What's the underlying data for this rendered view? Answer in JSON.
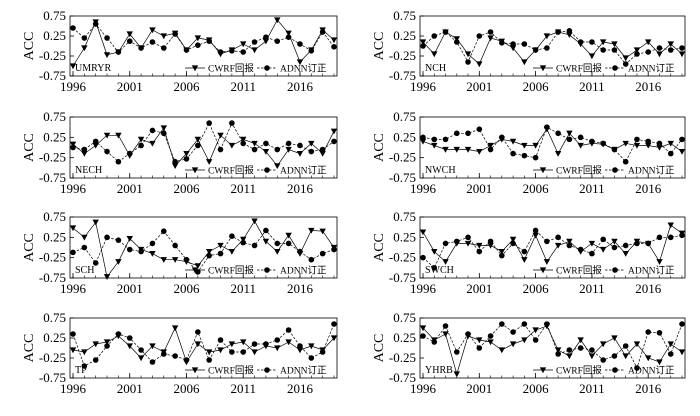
{
  "chart_data": [
    {
      "type": "line",
      "region": "UMRYR",
      "x": [
        1996,
        1997,
        1998,
        1999,
        2000,
        2001,
        2002,
        2003,
        2004,
        2005,
        2006,
        2007,
        2008,
        2009,
        2010,
        2011,
        2012,
        2013,
        2014,
        2015,
        2016,
        2017,
        2018,
        2019
      ],
      "series": [
        {
          "name": "CWRF回报",
          "values": [
            -0.5,
            -0.05,
            0.6,
            -0.22,
            -0.15,
            0.3,
            -0.05,
            0.4,
            0.25,
            0.32,
            -0.1,
            0.2,
            0.15,
            -0.2,
            -0.1,
            0.05,
            -0.1,
            0.12,
            0.65,
            0.32,
            -0.4,
            -0.1,
            0.4,
            0.15
          ]
        },
        {
          "name": "ADNN订正",
          "values": [
            0.45,
            0.2,
            0.55,
            0.2,
            -0.15,
            0.12,
            -0.05,
            0.1,
            -0.05,
            0.3,
            -0.1,
            0.02,
            0.12,
            -0.15,
            -0.12,
            -0.15,
            0.1,
            0.22,
            0.12,
            0.22,
            0.05,
            -0.12,
            0.35,
            -0.02
          ]
        }
      ],
      "ylabel": "ACC",
      "ylim": [
        -0.75,
        0.75
      ],
      "yticks": [
        "0.75",
        "0.25",
        "-0.25",
        "-0.75"
      ],
      "xticks": [
        "1996",
        "2001",
        "2006",
        "2011",
        "2016"
      ]
    },
    {
      "type": "line",
      "region": "NCH",
      "x": [
        1996,
        1997,
        1998,
        1999,
        2000,
        2001,
        2002,
        2003,
        2004,
        2005,
        2006,
        2007,
        2008,
        2009,
        2010,
        2011,
        2012,
        2013,
        2014,
        2015,
        2016,
        2017,
        2018,
        2019
      ],
      "series": [
        {
          "name": "CWRF回报",
          "values": [
            0.1,
            -0.2,
            0.35,
            0.18,
            -0.2,
            -0.45,
            0.2,
            0.12,
            -0.05,
            -0.4,
            -0.1,
            0.25,
            0.35,
            0.28,
            0.05,
            -0.25,
            0.1,
            0.05,
            -0.3,
            -0.1,
            0.1,
            -0.2,
            0.05,
            -0.2
          ]
        },
        {
          "name": "ADNN订正",
          "values": [
            0,
            0.25,
            0.35,
            0.1,
            -0.4,
            0.25,
            0.35,
            0.08,
            0.05,
            0.05,
            -0.1,
            -0.05,
            0.35,
            0.38,
            0.1,
            0.1,
            -0.1,
            -0.1,
            -0.45,
            -0.2,
            -0.15,
            -0.05,
            -0.1,
            -0.05
          ]
        }
      ],
      "ylabel": "ACC",
      "ylim": [
        -0.75,
        0.75
      ],
      "yticks": [
        "0.75",
        "0.25",
        "-0.25",
        "-0.75"
      ],
      "xticks": [
        "1996",
        "2001",
        "2006",
        "2011",
        "2016"
      ]
    },
    {
      "type": "line",
      "region": "NECH",
      "x": [
        1996,
        1997,
        1998,
        1999,
        2000,
        2001,
        2002,
        2003,
        2004,
        2005,
        2006,
        2007,
        2008,
        2009,
        2010,
        2011,
        2012,
        2013,
        2014,
        2015,
        2016,
        2017,
        2018,
        2019
      ],
      "series": [
        {
          "name": "CWRF回报",
          "values": [
            0.08,
            -0.15,
            0.05,
            0.3,
            0.3,
            -0.2,
            0.2,
            0.1,
            0.48,
            -0.45,
            -0.15,
            0.2,
            -0.35,
            0.3,
            0.05,
            0.2,
            0.1,
            -0.1,
            -0.45,
            -0.05,
            -0.15,
            0.1,
            -0.15,
            0.4
          ]
        },
        {
          "name": "ADNN订正",
          "values": [
            0,
            -0.05,
            0.15,
            -0.1,
            -0.35,
            -0.15,
            0.05,
            0.42,
            0.35,
            -0.35,
            -0.28,
            0.05,
            0.6,
            -0.05,
            0.6,
            0.1,
            -0.05,
            0.1,
            -0.05,
            0.1,
            0.05,
            -0.1,
            -0.05,
            0.15
          ]
        }
      ],
      "ylabel": "ACC",
      "ylim": [
        -0.75,
        0.75
      ],
      "yticks": [
        "0.75",
        "0.25",
        "-0.25",
        "-0.75"
      ],
      "xticks": [
        "1996",
        "2001",
        "2006",
        "2011",
        "2016"
      ]
    },
    {
      "type": "line",
      "region": "NWCH",
      "x": [
        1996,
        1997,
        1998,
        1999,
        2000,
        2001,
        2002,
        2003,
        2004,
        2005,
        2006,
        2007,
        2008,
        2009,
        2010,
        2011,
        2012,
        2013,
        2014,
        2015,
        2016,
        2017,
        2018,
        2019
      ],
      "series": [
        {
          "name": "CWRF回报",
          "values": [
            0.15,
            0.05,
            -0.05,
            -0.05,
            -0.05,
            -0.1,
            0.05,
            0.2,
            0.15,
            0.05,
            0.05,
            0.45,
            -0.15,
            0.35,
            0.05,
            0.1,
            0.08,
            -0.05,
            0.1,
            0.05,
            0.05,
            0,
            0.1,
            -0.1
          ]
        },
        {
          "name": "ADNN订正",
          "values": [
            0.25,
            0.2,
            0.2,
            0.35,
            0.35,
            0.45,
            -0.05,
            0.25,
            -0.15,
            -0.2,
            -0.25,
            0.5,
            0.35,
            0.2,
            0.25,
            0.15,
            0.1,
            -0.05,
            -0.35,
            0.2,
            0.15,
            0.1,
            -0.15,
            0.2
          ]
        }
      ],
      "ylabel": "ACC",
      "ylim": [
        -0.75,
        0.75
      ],
      "yticks": [
        "0.75",
        "0.25",
        "-0.25",
        "-0.75"
      ],
      "xticks": [
        "1996",
        "2001",
        "2006",
        "2011",
        "2016"
      ]
    },
    {
      "type": "line",
      "region": "SCH",
      "x": [
        1996,
        1997,
        1998,
        1999,
        2000,
        2001,
        2002,
        2003,
        2004,
        2005,
        2006,
        2007,
        2008,
        2009,
        2010,
        2011,
        2012,
        2013,
        2014,
        2015,
        2016,
        2017,
        2018,
        2019
      ],
      "series": [
        {
          "name": "CWRF回报",
          "values": [
            0.48,
            0.25,
            0.62,
            -0.72,
            -0.35,
            0.22,
            -0.05,
            -0.15,
            -0.3,
            -0.3,
            -0.35,
            -0.45,
            -0.1,
            0.05,
            -0.1,
            0.2,
            0.65,
            0.15,
            -0.1,
            0.3,
            -0.15,
            0.42,
            0.4,
            0
          ]
        },
        {
          "name": "ADNN订正",
          "values": [
            -0.12,
            0,
            -0.38,
            0.25,
            0.18,
            -0.05,
            -0.1,
            0.1,
            0.4,
            0.05,
            -0.3,
            -0.6,
            -0.2,
            -0.15,
            0.28,
            0.12,
            0.05,
            0.42,
            0.1,
            0.1,
            -0.1,
            -0.3,
            -0.15,
            -0.05
          ]
        }
      ],
      "ylabel": "ACC",
      "ylim": [
        -0.75,
        0.75
      ],
      "yticks": [
        "0.75",
        "0.25",
        "-0.25",
        "-0.75"
      ],
      "xticks": [
        "1996",
        "2001",
        "2006",
        "2011",
        "2016"
      ]
    },
    {
      "type": "line",
      "region": "SWCH",
      "x": [
        1996,
        1997,
        1998,
        1999,
        2000,
        2001,
        2002,
        2003,
        2004,
        2005,
        2006,
        2007,
        2008,
        2009,
        2010,
        2011,
        2012,
        2013,
        2014,
        2015,
        2016,
        2017,
        2018,
        2019
      ],
      "series": [
        {
          "name": "CWRF回报",
          "values": [
            0.38,
            -0.1,
            -0.35,
            0.1,
            0.1,
            0.05,
            0.05,
            -0.1,
            0.2,
            -0.3,
            0.3,
            -0.35,
            0.05,
            0.15,
            -0.1,
            0.1,
            -0.05,
            0.15,
            -0.15,
            0.15,
            0.1,
            -0.35,
            0.55,
            0.35
          ]
        },
        {
          "name": "ADNN订正",
          "values": [
            -0.25,
            -0.5,
            0.1,
            0.15,
            0.25,
            -0.1,
            0.15,
            -0.2,
            0.1,
            -0.1,
            0.42,
            0.15,
            0.25,
            0.05,
            -0.05,
            -0.15,
            0.2,
            0,
            0.05,
            0.1,
            0.1,
            0.25,
            0.25,
            0.3
          ]
        }
      ],
      "ylabel": "ACC",
      "ylim": [
        -0.75,
        0.75
      ],
      "yticks": [
        "0.75",
        "0.25",
        "-0.25",
        "-0.75"
      ],
      "xticks": [
        "1996",
        "2001",
        "2006",
        "2011",
        "2016"
      ]
    },
    {
      "type": "line",
      "region": "TP",
      "x": [
        1996,
        1997,
        1998,
        1999,
        2000,
        2001,
        2002,
        2003,
        2004,
        2005,
        2006,
        2007,
        2008,
        2009,
        2010,
        2011,
        2012,
        2013,
        2014,
        2015,
        2016,
        2017,
        2018,
        2019
      ],
      "series": [
        {
          "name": "CWRF回报",
          "values": [
            -0.05,
            -0.1,
            0.1,
            0.15,
            0.3,
            0.05,
            -0.25,
            0.05,
            -0.1,
            0.5,
            -0.35,
            0.1,
            -0.1,
            -0.05,
            0.1,
            0.15,
            -0.1,
            0.05,
            0,
            0.15,
            -0.05,
            0.05,
            -0.05,
            0.25
          ]
        },
        {
          "name": "ADNN订正",
          "values": [
            0.35,
            -0.45,
            -0.3,
            0.05,
            0.35,
            0.25,
            -0.05,
            -0.35,
            -0.15,
            -0.2,
            -0.3,
            0.4,
            -0.3,
            0.2,
            -0.1,
            -0.1,
            0.1,
            0.1,
            0.2,
            0.45,
            0.05,
            -0.25,
            -0.1,
            0.6
          ]
        }
      ],
      "ylabel": "ACC",
      "ylim": [
        -0.75,
        0.75
      ],
      "yticks": [
        "0.75",
        "0.25",
        "-0.25",
        "-0.75"
      ],
      "xticks": [
        "1996",
        "2001",
        "2006",
        "2011",
        "2016"
      ]
    },
    {
      "type": "line",
      "region": "YHRB",
      "x": [
        1996,
        1997,
        1998,
        1999,
        2000,
        2001,
        2002,
        2003,
        2004,
        2005,
        2006,
        2007,
        2008,
        2009,
        2010,
        2011,
        2012,
        2013,
        2014,
        2015,
        2016,
        2017,
        2018,
        2019
      ],
      "series": [
        {
          "name": "CWRF回报",
          "values": [
            0.5,
            0.2,
            0.35,
            -0.65,
            0.3,
            0.2,
            0.15,
            -0.05,
            0.1,
            0.2,
            0.45,
            0.55,
            -0.05,
            -0.2,
            0.2,
            -0.2,
            0.1,
            0.25,
            -0.2,
            0.1,
            -0.25,
            -0.35,
            0.1,
            -0.1
          ]
        },
        {
          "name": "ADNN订正",
          "values": [
            0.3,
            0.15,
            0.55,
            -0.1,
            0.35,
            0,
            0.3,
            0.6,
            0.4,
            0.6,
            0.2,
            0.6,
            -0.15,
            -0.05,
            0,
            -0.05,
            -0.3,
            -0.2,
            0.05,
            -0.5,
            0.4,
            0.38,
            -0.15,
            0.6
          ]
        }
      ],
      "ylabel": "ACC",
      "ylim": [
        -0.75,
        0.75
      ],
      "yticks": [
        "0.75",
        "0.25",
        "-0.25",
        "-0.75"
      ],
      "xticks": [
        "1996",
        "2001",
        "2006",
        "2011",
        "2016"
      ]
    }
  ]
}
